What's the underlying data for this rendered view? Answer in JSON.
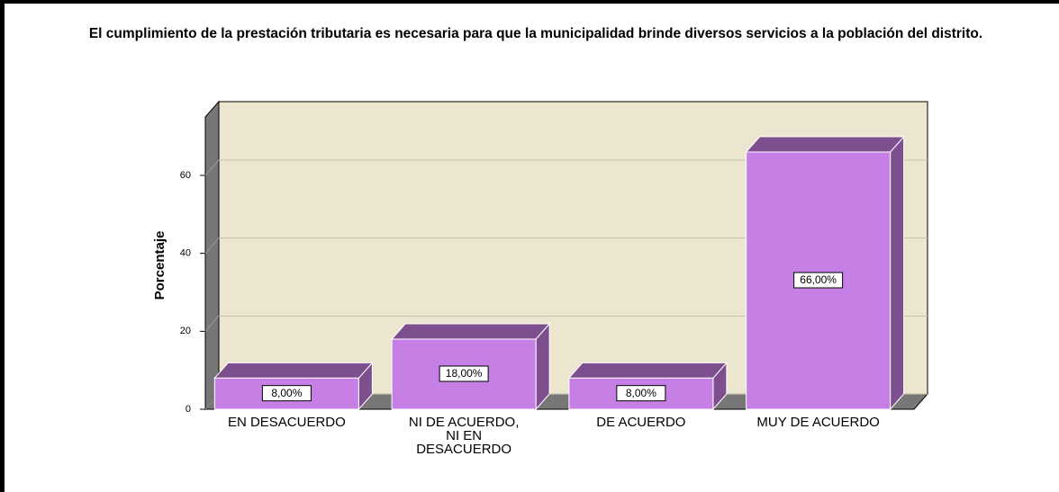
{
  "chart_data": {
    "type": "bar",
    "title": "El cumplimiento de la prestación tributaria es necesaria para que la municipalidad brinde diversos servicios a la población del distrito.",
    "ylabel": "Porcentaje",
    "categories": [
      "EN DESACUERDO",
      "NI DE ACUERDO, NI EN DESACUERDO",
      "DE ACUERDO",
      "MUY DE ACUERDO"
    ],
    "values": [
      8,
      18,
      8,
      66
    ],
    "value_labels": [
      "8,00%",
      "18,00%",
      "8,00%",
      "66,00%"
    ],
    "color": "#c67fe5",
    "ylim": [
      0,
      75
    ],
    "yticks": [
      0,
      20,
      40,
      60
    ],
    "grid": true
  }
}
